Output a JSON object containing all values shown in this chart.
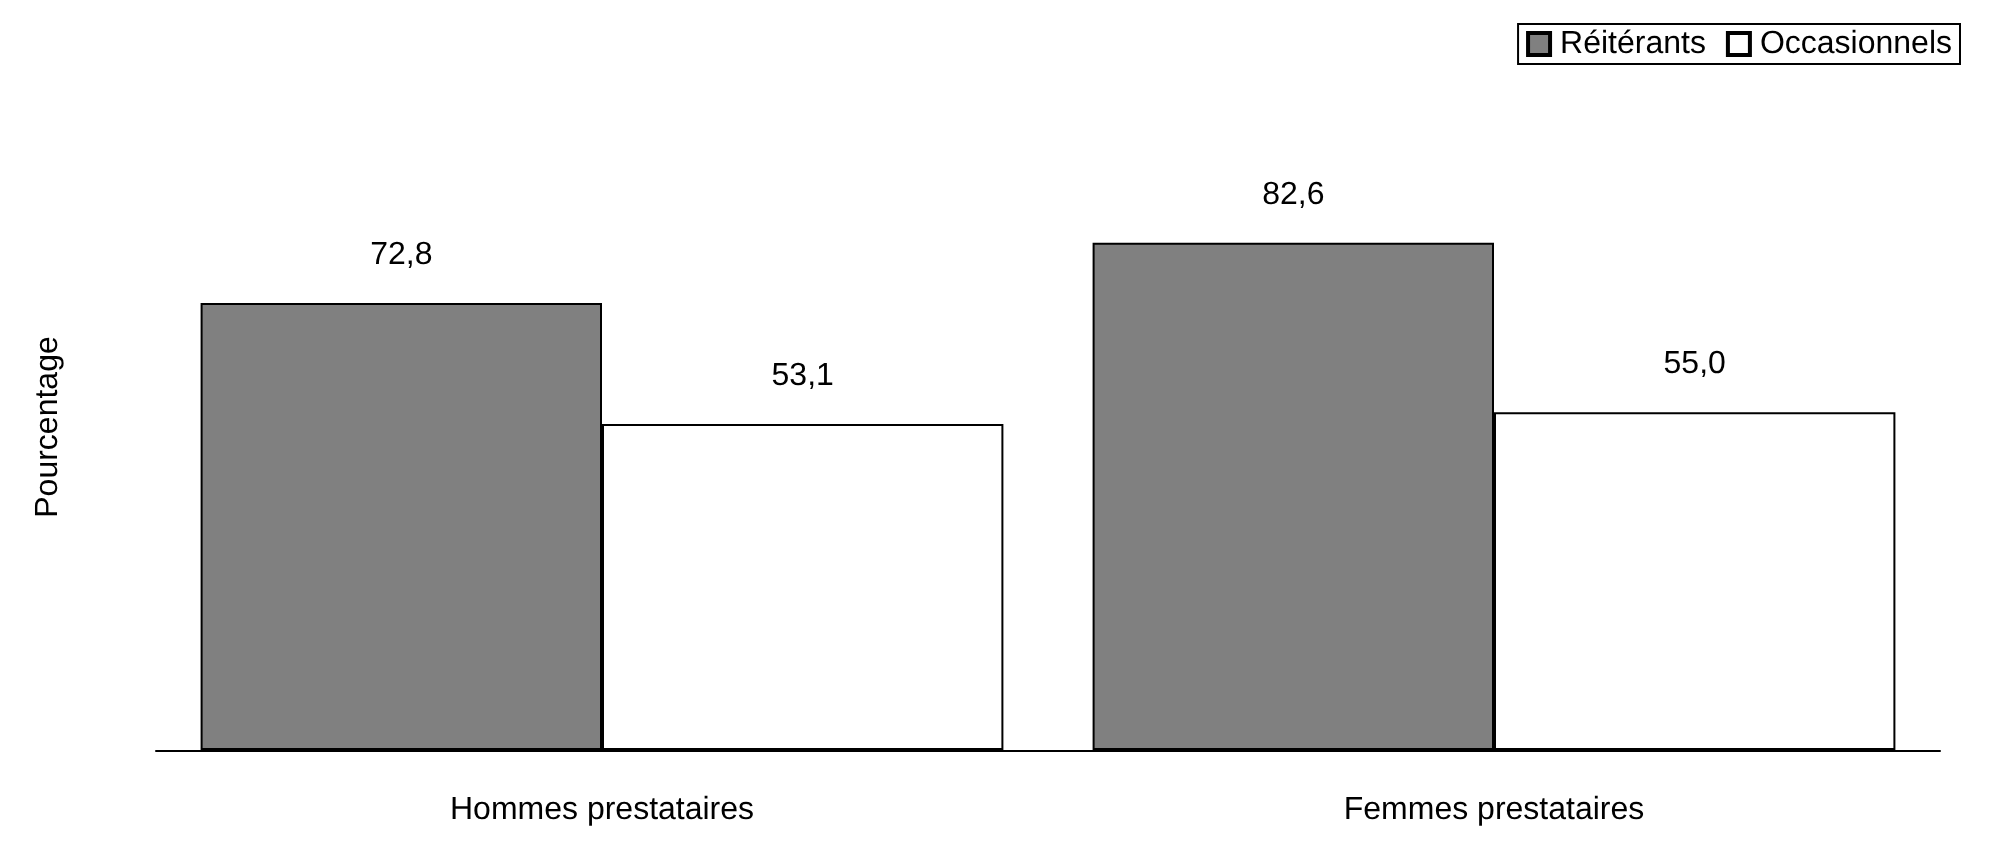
{
  "chart_data": {
    "type": "bar",
    "ylabel": "Pourcentage",
    "categories": [
      "Hommes prestataires",
      "Femmes prestataires"
    ],
    "series": [
      {
        "name": "Réitérants",
        "color": "#808080",
        "values": [
          72.8,
          82.6
        ],
        "value_labels": [
          "72,8",
          "82,6"
        ]
      },
      {
        "name": "Occasionnels",
        "color": "#ffffff",
        "values": [
          53.1,
          55.0
        ],
        "value_labels": [
          "53,1",
          "55,0"
        ]
      }
    ],
    "legend": "top right",
    "grid": false
  }
}
